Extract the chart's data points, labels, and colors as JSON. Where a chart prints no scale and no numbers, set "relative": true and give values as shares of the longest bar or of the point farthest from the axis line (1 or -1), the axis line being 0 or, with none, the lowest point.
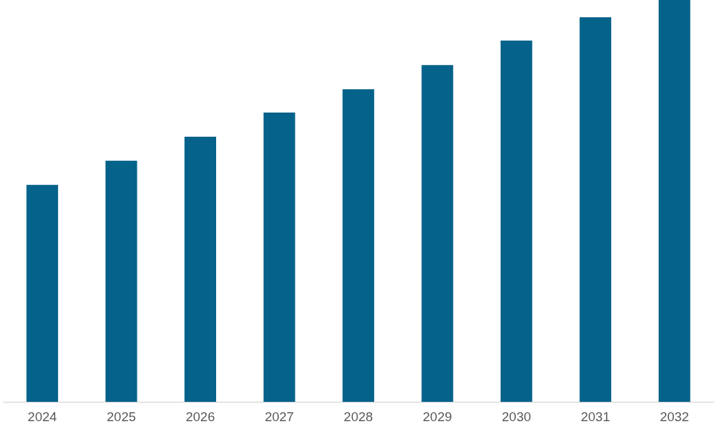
{
  "chart_data": {
    "type": "bar",
    "relative": true,
    "categories": [
      "2024",
      "2025",
      "2026",
      "2027",
      "2028",
      "2029",
      "2030",
      "2031",
      "2032"
    ],
    "values": [
      0.54,
      0.6,
      0.66,
      0.72,
      0.778,
      0.838,
      0.899,
      0.957,
      1
    ],
    "color": "#05628a"
  }
}
